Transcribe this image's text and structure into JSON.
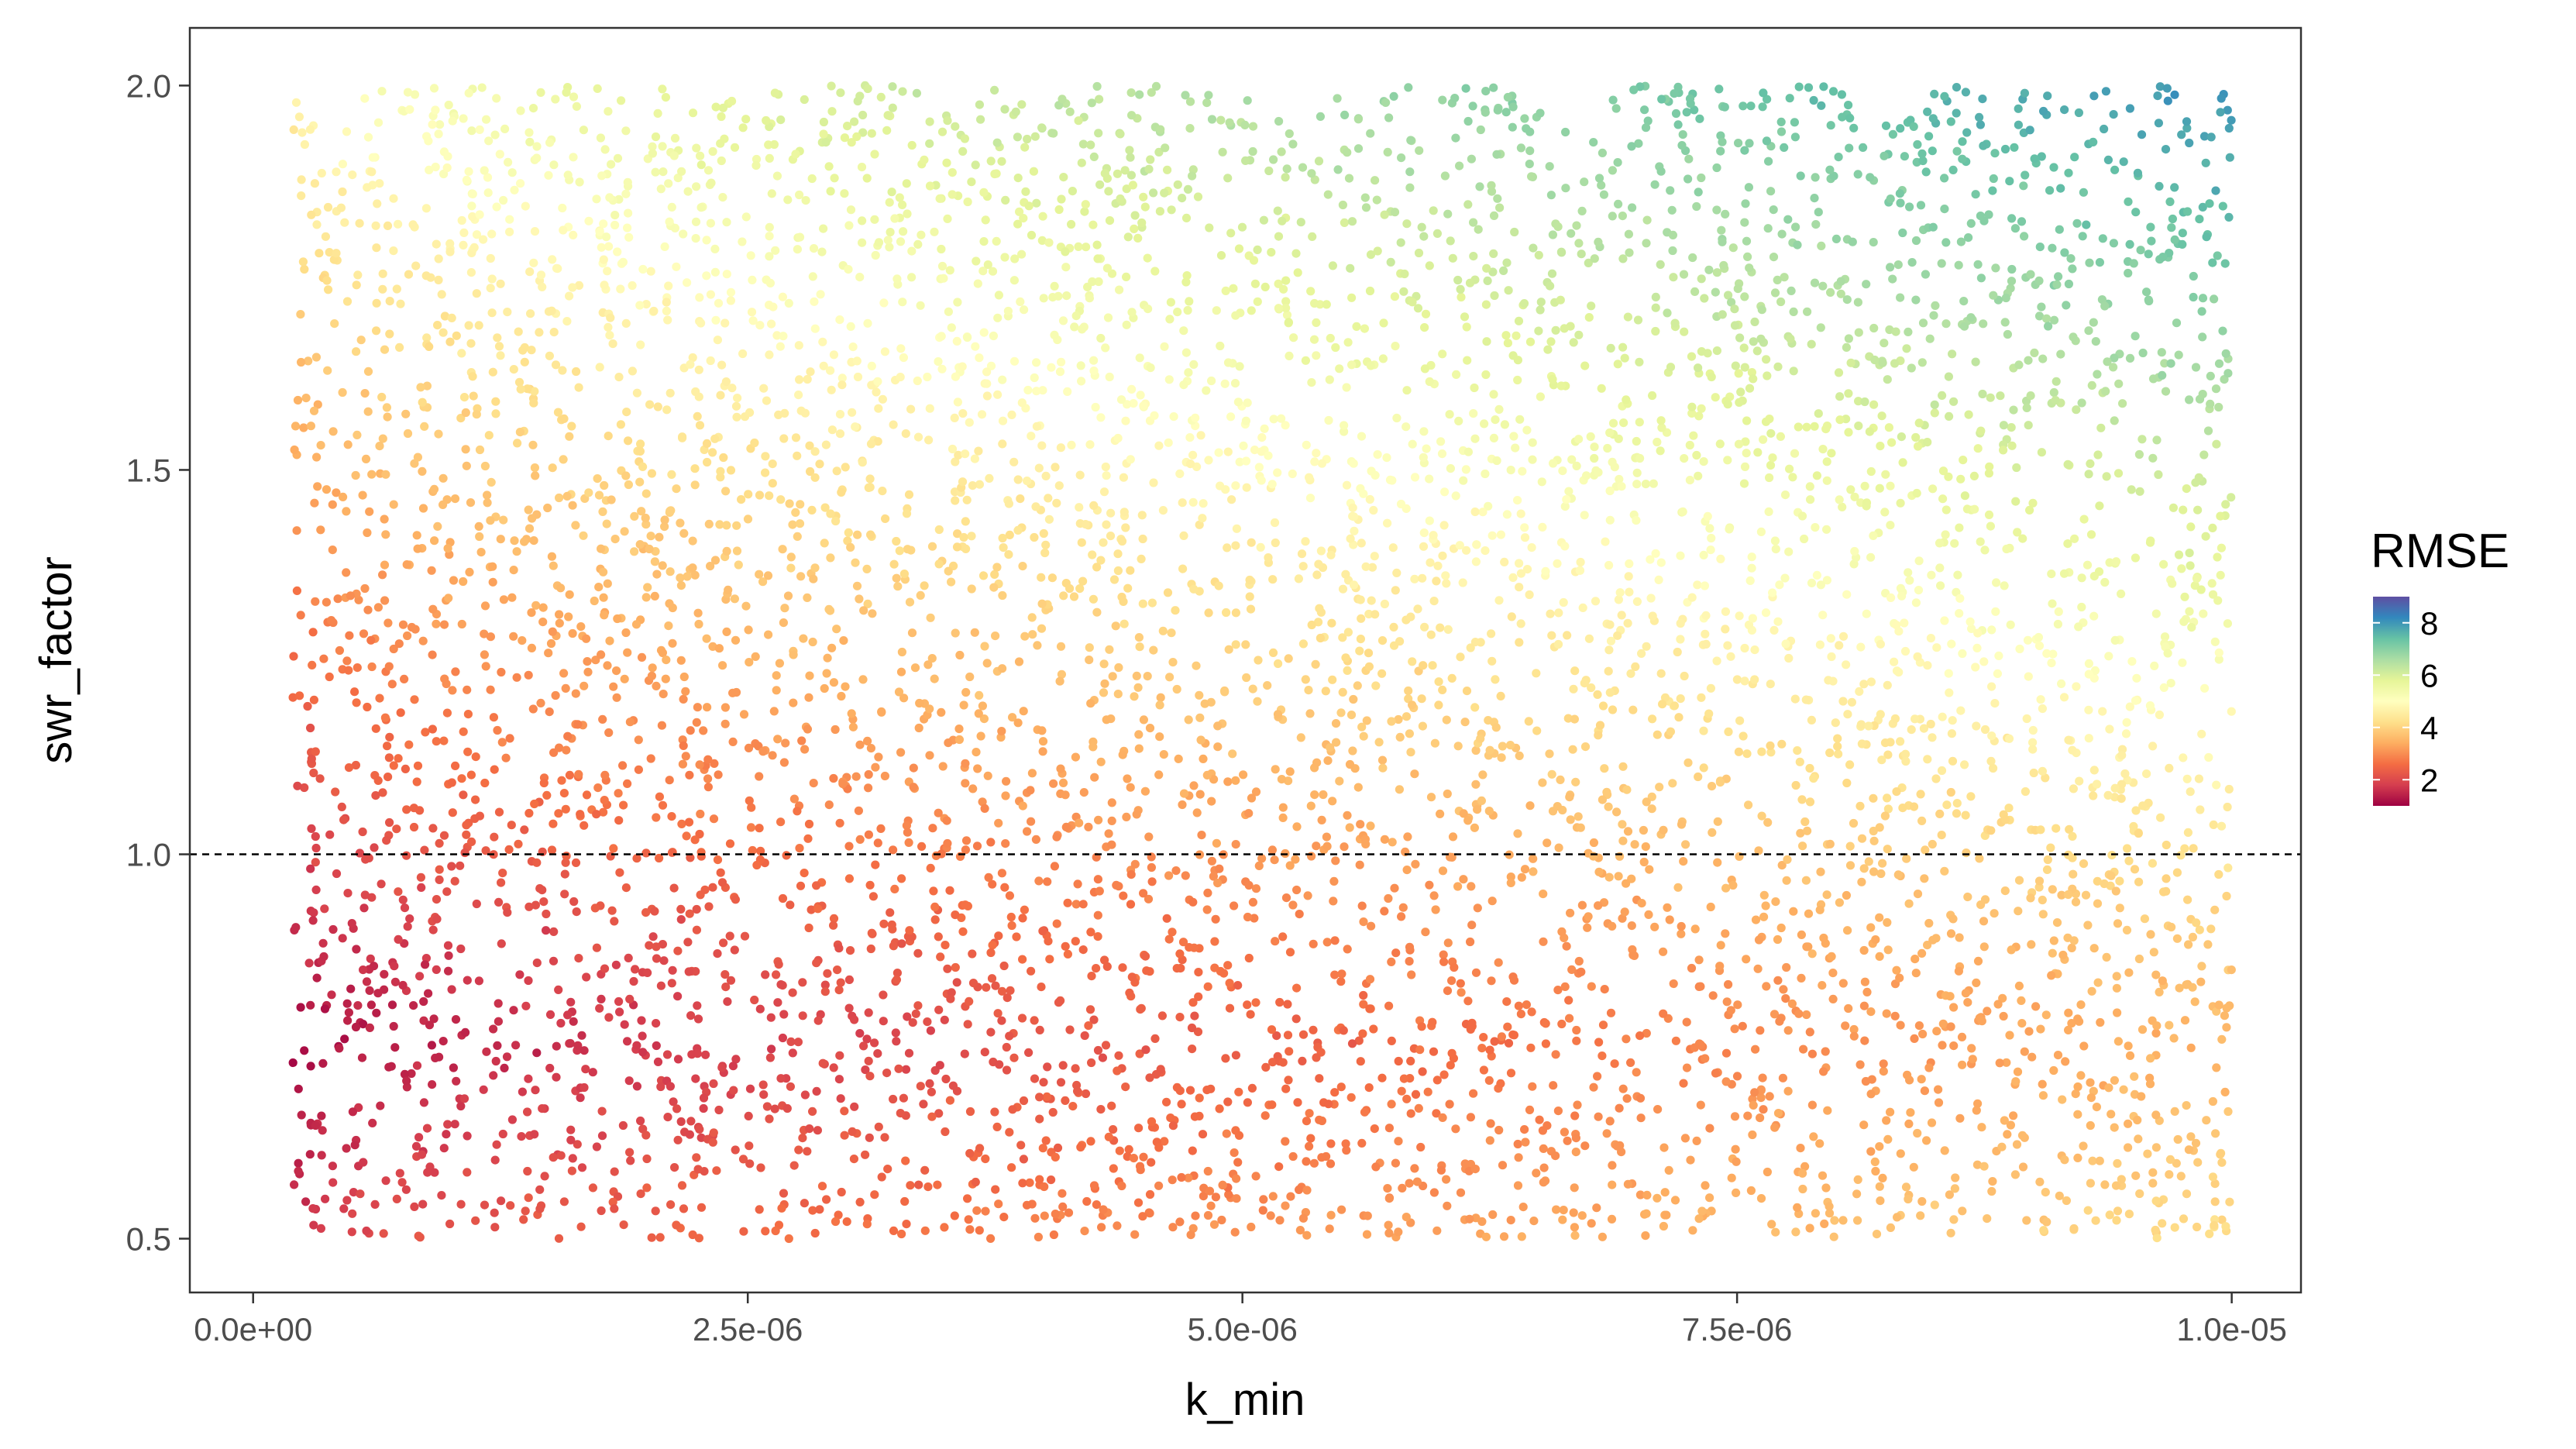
{
  "chart_data": {
    "type": "scatter",
    "title": "",
    "xlabel": "k_min",
    "ylabel": "swr_factor",
    "xlim": [
      -3.2e-07,
      1.035e-05
    ],
    "ylim": [
      0.43,
      2.075
    ],
    "x_ticks": [
      0,
      2.5e-06,
      5e-06,
      7.5e-06,
      1e-05
    ],
    "x_tick_labels": [
      "0.0e+00",
      "2.5e-06",
      "5.0e-06",
      "7.5e-06",
      "1.0e-05"
    ],
    "y_ticks": [
      0.5,
      1.0,
      1.5,
      2.0
    ],
    "y_tick_labels": [
      "0.5",
      "1.0",
      "1.5",
      "2.0"
    ],
    "reference_line": {
      "y": 1.0,
      "style": "dashed"
    },
    "points_note": "approximately 6000 sampled points, k_min uniform over [2e-7, 1e-5], swr_factor uniform over [0.5, 2.0]",
    "n_points": 6000,
    "x_range_sampled": [
      2e-07,
      1e-05
    ],
    "y_range_sampled": [
      0.5,
      2.0
    ],
    "color_variable": "RMSE",
    "rmse_model": {
      "min_at": {
        "x": 2e-07,
        "y": 0.75,
        "rmse": 1.0
      },
      "max_at": {
        "x": 1e-05,
        "y": 2.0,
        "rmse": 9.0
      }
    },
    "grid": false,
    "legend": {
      "title": "RMSE",
      "position": "right",
      "type": "colorbar",
      "range": [
        1.0,
        9.0
      ],
      "ticks": [
        2,
        4,
        6,
        8
      ],
      "tick_labels": [
        "2",
        "4",
        "6",
        "8"
      ],
      "palette": "Spectral",
      "colors": [
        "#9E0142",
        "#D53E4F",
        "#F46D43",
        "#FDAE61",
        "#FEE08B",
        "#FFFFBF",
        "#E6F598",
        "#ABDDA4",
        "#66C2A5",
        "#3288BD",
        "#5E4FA2"
      ]
    }
  }
}
